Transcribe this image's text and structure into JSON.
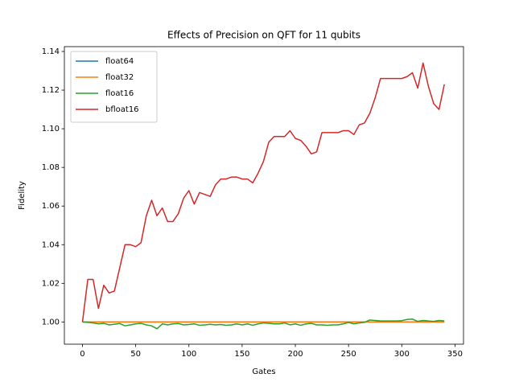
{
  "chart_data": {
    "type": "line",
    "title": "Effects of Precision on QFT for 11 qubits",
    "x_label": "Gates",
    "y_label": "Fidelity",
    "x": [
      0,
      5,
      10,
      15,
      20,
      25,
      30,
      35,
      40,
      45,
      50,
      55,
      60,
      65,
      70,
      75,
      80,
      85,
      90,
      95,
      100,
      105,
      110,
      115,
      120,
      125,
      130,
      135,
      140,
      145,
      150,
      155,
      160,
      165,
      170,
      175,
      180,
      185,
      190,
      195,
      200,
      205,
      210,
      215,
      220,
      225,
      230,
      235,
      240,
      245,
      250,
      255,
      260,
      265,
      270,
      275,
      280,
      285,
      290,
      295,
      300,
      305,
      310,
      315,
      320,
      325,
      330,
      335,
      340
    ],
    "series": [
      {
        "name": "float64",
        "color": "#1f77b4",
        "values": [
          1,
          1,
          1,
          1,
          1,
          1,
          1,
          1,
          1,
          1,
          1,
          1,
          1,
          1,
          1,
          1,
          1,
          1,
          1,
          1,
          1,
          1,
          1,
          1,
          1,
          1,
          1,
          1,
          1,
          1,
          1,
          1,
          1,
          1,
          1,
          1,
          1,
          1,
          1,
          1,
          1,
          1,
          1,
          1,
          1,
          1,
          1,
          1,
          1,
          1,
          1,
          1,
          1,
          1,
          1,
          1,
          1,
          1,
          1,
          1,
          1,
          1,
          1,
          1,
          1,
          1,
          1,
          1,
          1
        ]
      },
      {
        "name": "float32",
        "color": "#ff7f0e",
        "values": [
          1,
          1,
          1,
          1,
          1,
          1,
          1,
          1,
          1,
          1,
          1,
          1,
          1,
          1,
          1,
          1,
          1,
          1,
          1,
          1,
          1,
          1,
          1,
          1,
          1,
          1,
          1,
          1,
          1,
          1,
          1,
          1,
          1,
          1,
          1,
          1,
          1,
          1,
          1,
          1,
          1,
          1,
          1,
          1,
          1,
          1,
          1,
          1,
          1,
          1,
          1,
          1,
          1,
          1,
          1,
          1,
          1,
          1,
          1,
          1,
          1,
          1,
          1,
          1,
          1,
          1,
          1,
          1,
          1
        ]
      },
      {
        "name": "float16",
        "color": "#2ca02c",
        "values": [
          1.0,
          0.9998,
          0.9995,
          0.999,
          0.9993,
          0.9985,
          0.9988,
          0.9992,
          0.998,
          0.9985,
          0.999,
          0.9993,
          0.9985,
          0.998,
          0.9965,
          0.999,
          0.9985,
          0.999,
          0.9992,
          0.9985,
          0.9987,
          0.999,
          0.9983,
          0.9985,
          0.9988,
          0.9985,
          0.9987,
          0.9983,
          0.9985,
          0.999,
          0.9985,
          0.999,
          0.9983,
          0.999,
          0.9995,
          0.9993,
          0.999,
          0.999,
          0.9995,
          0.9985,
          0.999,
          0.9983,
          0.999,
          0.9993,
          0.9985,
          0.9985,
          0.9983,
          0.9985,
          0.9985,
          0.999,
          0.9998,
          0.999,
          0.9995,
          0.9998,
          1.001,
          1.0008,
          1.0005,
          1.0005,
          1.0005,
          1.0005,
          1.0007,
          1.0013,
          1.0015,
          1.0003,
          1.0008,
          1.0005,
          1.0003,
          1.0008,
          1.0005
        ]
      },
      {
        "name": "bfloat16",
        "color": "#d62728",
        "values": [
          1.0,
          1.022,
          1.022,
          1.007,
          1.019,
          1.015,
          1.016,
          1.028,
          1.04,
          1.04,
          1.039,
          1.041,
          1.055,
          1.063,
          1.055,
          1.059,
          1.052,
          1.052,
          1.056,
          1.064,
          1.068,
          1.061,
          1.067,
          1.066,
          1.065,
          1.071,
          1.074,
          1.074,
          1.075,
          1.075,
          1.074,
          1.074,
          1.072,
          1.077,
          1.083,
          1.093,
          1.096,
          1.096,
          1.096,
          1.099,
          1.095,
          1.094,
          1.091,
          1.087,
          1.088,
          1.098,
          1.098,
          1.098,
          1.098,
          1.099,
          1.099,
          1.097,
          1.102,
          1.103,
          1.108,
          1.116,
          1.126,
          1.126,
          1.126,
          1.126,
          1.126,
          1.127,
          1.129,
          1.121,
          1.134,
          1.122,
          1.113,
          1.11,
          1.123
        ]
      }
    ],
    "xlim": [
      -17,
      358
    ],
    "xticks": [
      0,
      50,
      100,
      150,
      200,
      250,
      300,
      350
    ],
    "ylim": [
      0.9885,
      1.1425
    ],
    "yticks": [
      {
        "value": 1.0,
        "label": "1.00"
      },
      1.02,
      1.04,
      1.06,
      1.08,
      {
        "value": 1.1,
        "label": "1.10"
      },
      1.12,
      1.14
    ],
    "legend": "upper left"
  }
}
